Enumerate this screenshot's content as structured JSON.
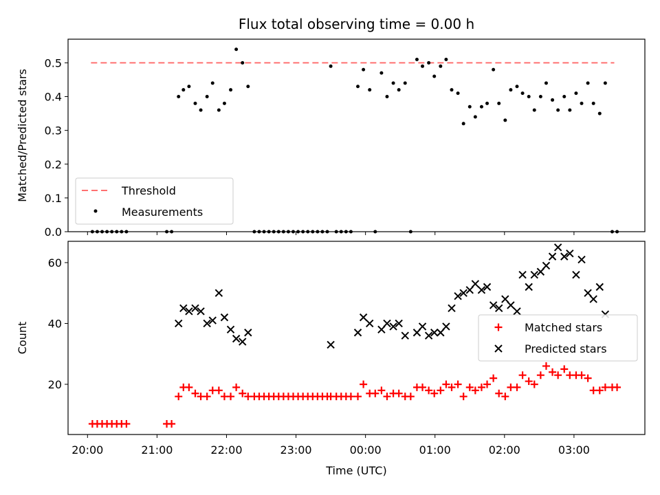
{
  "chart_data": [
    {
      "type": "scatter",
      "title": "Flux total observing time = 0.00 h",
      "xlabel": "",
      "ylabel": "Matched/Predicted stars",
      "x_unit": "hours since 20:00 UTC",
      "xlim": [
        -0.28,
        8.02
      ],
      "ylim": [
        0,
        0.57
      ],
      "yticks": [
        0.0,
        0.1,
        0.2,
        0.3,
        0.4,
        0.5
      ],
      "xticks": [
        "20:00",
        "21:00",
        "22:00",
        "23:00",
        "00:00",
        "01:00",
        "02:00",
        "03:00"
      ],
      "threshold": {
        "name": "Threshold",
        "value": 0.5,
        "x_range": [
          0.05,
          7.58
        ],
        "color": "#ff7070"
      },
      "legend": {
        "placement": "lower-left",
        "entries": [
          "Threshold",
          "Measurements"
        ]
      },
      "series": [
        {
          "name": "Measurements",
          "color": "#000000",
          "points": [
            [
              0.07,
              0
            ],
            [
              0.14,
              0
            ],
            [
              0.21,
              0
            ],
            [
              0.28,
              0
            ],
            [
              0.35,
              0
            ],
            [
              0.42,
              0
            ],
            [
              0.49,
              0
            ],
            [
              0.56,
              0
            ],
            [
              1.14,
              0
            ],
            [
              1.21,
              0
            ],
            [
              1.31,
              0.4
            ],
            [
              1.38,
              0.42
            ],
            [
              1.46,
              0.43
            ],
            [
              1.55,
              0.38
            ],
            [
              1.63,
              0.36
            ],
            [
              1.72,
              0.4
            ],
            [
              1.8,
              0.44
            ],
            [
              1.89,
              0.36
            ],
            [
              1.97,
              0.38
            ],
            [
              2.06,
              0.42
            ],
            [
              2.14,
              0.54
            ],
            [
              2.23,
              0.5
            ],
            [
              2.31,
              0.43
            ],
            [
              2.4,
              0
            ],
            [
              2.47,
              0
            ],
            [
              2.54,
              0
            ],
            [
              2.61,
              0
            ],
            [
              2.68,
              0
            ],
            [
              2.75,
              0
            ],
            [
              2.82,
              0
            ],
            [
              2.89,
              0
            ],
            [
              2.96,
              0
            ],
            [
              3.03,
              0
            ],
            [
              3.1,
              0
            ],
            [
              3.17,
              0
            ],
            [
              3.24,
              0
            ],
            [
              3.31,
              0
            ],
            [
              3.38,
              0
            ],
            [
              3.45,
              0
            ],
            [
              3.5,
              0.49
            ],
            [
              3.58,
              0
            ],
            [
              3.65,
              0
            ],
            [
              3.72,
              0
            ],
            [
              3.79,
              0
            ],
            [
              3.89,
              0.43
            ],
            [
              3.97,
              0.48
            ],
            [
              4.06,
              0.42
            ],
            [
              4.14,
              0
            ],
            [
              4.23,
              0.47
            ],
            [
              4.31,
              0.4
            ],
            [
              4.4,
              0.44
            ],
            [
              4.48,
              0.42
            ],
            [
              4.57,
              0.44
            ],
            [
              4.65,
              0
            ],
            [
              4.74,
              0.51
            ],
            [
              4.82,
              0.49
            ],
            [
              4.91,
              0.5
            ],
            [
              4.99,
              0.46
            ],
            [
              5.08,
              0.49
            ],
            [
              5.16,
              0.51
            ],
            [
              5.24,
              0.42
            ],
            [
              5.33,
              0.41
            ],
            [
              5.41,
              0.32
            ],
            [
              5.5,
              0.37
            ],
            [
              5.58,
              0.34
            ],
            [
              5.67,
              0.37
            ],
            [
              5.75,
              0.38
            ],
            [
              5.84,
              0.48
            ],
            [
              5.92,
              0.38
            ],
            [
              6.01,
              0.33
            ],
            [
              6.09,
              0.42
            ],
            [
              6.18,
              0.43
            ],
            [
              6.26,
              0.41
            ],
            [
              6.35,
              0.4
            ],
            [
              6.43,
              0.36
            ],
            [
              6.52,
              0.4
            ],
            [
              6.6,
              0.44
            ],
            [
              6.69,
              0.39
            ],
            [
              6.77,
              0.36
            ],
            [
              6.86,
              0.4
            ],
            [
              6.94,
              0.36
            ],
            [
              7.03,
              0.41
            ],
            [
              7.11,
              0.38
            ],
            [
              7.2,
              0.44
            ],
            [
              7.28,
              0.38
            ],
            [
              7.37,
              0.35
            ],
            [
              7.45,
              0.44
            ],
            [
              7.55,
              0
            ],
            [
              7.62,
              0
            ]
          ]
        }
      ]
    },
    {
      "type": "scatter",
      "title": "",
      "xlabel": "Time (UTC)",
      "ylabel": "Count",
      "x_unit": "hours since 20:00 UTC",
      "xlim": [
        -0.28,
        8.02
      ],
      "ylim": [
        3.5,
        67
      ],
      "yticks": [
        20,
        40,
        60
      ],
      "xticks": [
        "20:00",
        "21:00",
        "22:00",
        "23:00",
        "00:00",
        "01:00",
        "02:00",
        "03:00"
      ],
      "legend": {
        "placement": "center-right",
        "entries": [
          "Matched stars",
          "Predicted stars"
        ]
      },
      "series": [
        {
          "name": "Matched stars",
          "marker": "plus",
          "color": "#ff0000",
          "points": [
            [
              0.07,
              7
            ],
            [
              0.14,
              7
            ],
            [
              0.21,
              7
            ],
            [
              0.28,
              7
            ],
            [
              0.35,
              7
            ],
            [
              0.42,
              7
            ],
            [
              0.49,
              7
            ],
            [
              0.56,
              7
            ],
            [
              1.14,
              7
            ],
            [
              1.21,
              7
            ],
            [
              1.31,
              16
            ],
            [
              1.38,
              19
            ],
            [
              1.46,
              19
            ],
            [
              1.55,
              17
            ],
            [
              1.63,
              16
            ],
            [
              1.72,
              16
            ],
            [
              1.8,
              18
            ],
            [
              1.89,
              18
            ],
            [
              1.97,
              16
            ],
            [
              2.06,
              16
            ],
            [
              2.14,
              19
            ],
            [
              2.23,
              17
            ],
            [
              2.31,
              16
            ],
            [
              2.4,
              16
            ],
            [
              2.47,
              16
            ],
            [
              2.54,
              16
            ],
            [
              2.61,
              16
            ],
            [
              2.68,
              16
            ],
            [
              2.75,
              16
            ],
            [
              2.82,
              16
            ],
            [
              2.89,
              16
            ],
            [
              2.96,
              16
            ],
            [
              3.03,
              16
            ],
            [
              3.1,
              16
            ],
            [
              3.17,
              16
            ],
            [
              3.24,
              16
            ],
            [
              3.31,
              16
            ],
            [
              3.38,
              16
            ],
            [
              3.45,
              16
            ],
            [
              3.5,
              16
            ],
            [
              3.58,
              16
            ],
            [
              3.65,
              16
            ],
            [
              3.72,
              16
            ],
            [
              3.79,
              16
            ],
            [
              3.89,
              16
            ],
            [
              3.97,
              20
            ],
            [
              4.06,
              17
            ],
            [
              4.14,
              17
            ],
            [
              4.23,
              18
            ],
            [
              4.31,
              16
            ],
            [
              4.4,
              17
            ],
            [
              4.48,
              17
            ],
            [
              4.57,
              16
            ],
            [
              4.65,
              16
            ],
            [
              4.74,
              19
            ],
            [
              4.82,
              19
            ],
            [
              4.91,
              18
            ],
            [
              4.99,
              17
            ],
            [
              5.08,
              18
            ],
            [
              5.16,
              20
            ],
            [
              5.24,
              19
            ],
            [
              5.33,
              20
            ],
            [
              5.41,
              16
            ],
            [
              5.5,
              19
            ],
            [
              5.58,
              18
            ],
            [
              5.67,
              19
            ],
            [
              5.75,
              20
            ],
            [
              5.84,
              22
            ],
            [
              5.92,
              17
            ],
            [
              6.01,
              16
            ],
            [
              6.09,
              19
            ],
            [
              6.18,
              19
            ],
            [
              6.26,
              23
            ],
            [
              6.35,
              21
            ],
            [
              6.43,
              20
            ],
            [
              6.52,
              23
            ],
            [
              6.6,
              26
            ],
            [
              6.69,
              24
            ],
            [
              6.77,
              23
            ],
            [
              6.86,
              25
            ],
            [
              6.94,
              23
            ],
            [
              7.03,
              23
            ],
            [
              7.11,
              23
            ],
            [
              7.2,
              22
            ],
            [
              7.28,
              18
            ],
            [
              7.37,
              18
            ],
            [
              7.45,
              19
            ],
            [
              7.55,
              19
            ],
            [
              7.62,
              19
            ]
          ]
        },
        {
          "name": "Predicted stars",
          "marker": "x",
          "color": "#000000",
          "points": [
            [
              1.31,
              40
            ],
            [
              1.38,
              45
            ],
            [
              1.46,
              44
            ],
            [
              1.55,
              45
            ],
            [
              1.63,
              44
            ],
            [
              1.72,
              40
            ],
            [
              1.8,
              41
            ],
            [
              1.89,
              50
            ],
            [
              1.97,
              42
            ],
            [
              2.06,
              38
            ],
            [
              2.14,
              35
            ],
            [
              2.23,
              34
            ],
            [
              2.31,
              37
            ],
            [
              3.5,
              33
            ],
            [
              3.89,
              37
            ],
            [
              3.97,
              42
            ],
            [
              4.06,
              40
            ],
            [
              4.23,
              38
            ],
            [
              4.31,
              40
            ],
            [
              4.4,
              39
            ],
            [
              4.48,
              40
            ],
            [
              4.57,
              36
            ],
            [
              4.74,
              37
            ],
            [
              4.82,
              39
            ],
            [
              4.91,
              36
            ],
            [
              4.99,
              37
            ],
            [
              5.08,
              37
            ],
            [
              5.16,
              39
            ],
            [
              5.24,
              45
            ],
            [
              5.33,
              49
            ],
            [
              5.41,
              50
            ],
            [
              5.5,
              51
            ],
            [
              5.58,
              53
            ],
            [
              5.67,
              51
            ],
            [
              5.75,
              52
            ],
            [
              5.84,
              46
            ],
            [
              5.92,
              45
            ],
            [
              6.01,
              48
            ],
            [
              6.09,
              46
            ],
            [
              6.18,
              44
            ],
            [
              6.26,
              56
            ],
            [
              6.35,
              52
            ],
            [
              6.43,
              56
            ],
            [
              6.52,
              57
            ],
            [
              6.6,
              59
            ],
            [
              6.69,
              62
            ],
            [
              6.77,
              65
            ],
            [
              6.86,
              62
            ],
            [
              6.94,
              63
            ],
            [
              7.03,
              56
            ],
            [
              7.11,
              61
            ],
            [
              7.2,
              50
            ],
            [
              7.28,
              48
            ],
            [
              7.37,
              52
            ],
            [
              7.45,
              43
            ]
          ]
        }
      ]
    }
  ]
}
